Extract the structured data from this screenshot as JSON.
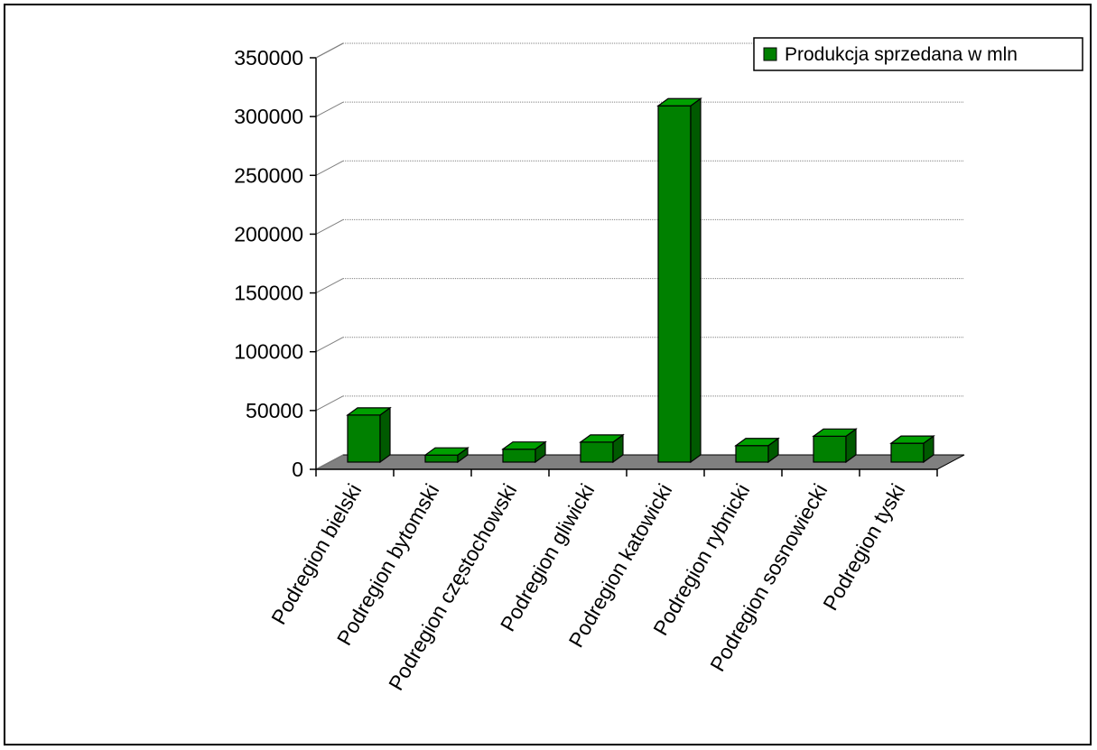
{
  "chart_data": {
    "type": "bar",
    "title": "",
    "xlabel": "",
    "ylabel": "",
    "ylim": [
      0,
      350000
    ],
    "yticks": [
      0,
      50000,
      100000,
      150000,
      200000,
      250000,
      300000,
      350000
    ],
    "categories": [
      "Podregion bielski",
      "Podregion bytomski",
      "Podregion częstochowski",
      "Podregion gliwicki",
      "Podregion katowicki",
      "Podregion rybnicki",
      "Podregion sosnowiecki",
      "Podregion tyski"
    ],
    "series": [
      {
        "name": "Produkcja sprzedana w mln",
        "values": [
          40000,
          6000,
          11000,
          17000,
          303000,
          14000,
          22000,
          16000
        ]
      }
    ],
    "grid": true,
    "legend_position": "top-right",
    "projection": "3d",
    "colors": {
      "bar_front": "#008000",
      "bar_top": "#00a000",
      "bar_side": "#005a00",
      "floor": "#808080",
      "gridline": "#808080"
    }
  }
}
